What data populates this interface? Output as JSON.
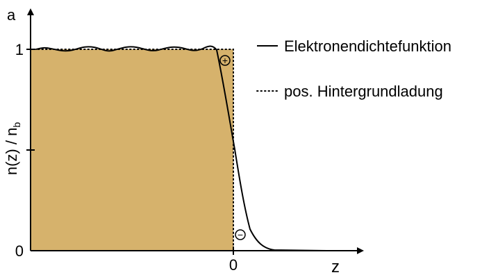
{
  "panel_label": "a",
  "y_axis_label": "n(z) / n",
  "y_axis_label_sub": "b",
  "x_axis_label": "z",
  "tick_y_one": "1",
  "tick_y_zero": "0",
  "tick_x_zero": "0",
  "legend": {
    "solid_label": "Elektronendichtefunktion",
    "dotted_label": "pos. Hintergrundladung"
  },
  "symbols": {
    "plus": "+",
    "minus": "−"
  },
  "colors": {
    "fill": "#d6b26c",
    "line": "#000000"
  }
}
